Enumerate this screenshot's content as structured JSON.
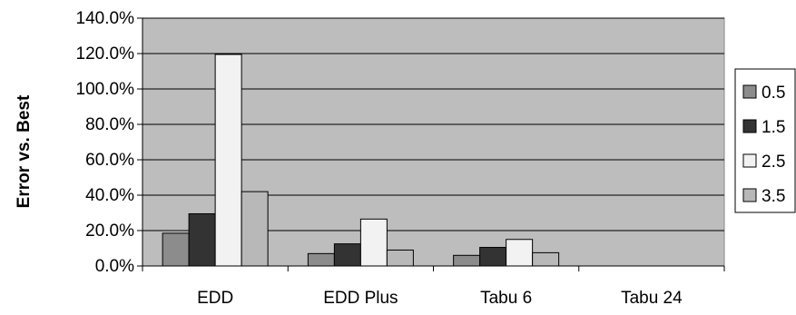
{
  "chart_data": {
    "type": "bar",
    "title": "",
    "xlabel": "",
    "ylabel": "Error vs. Best",
    "categories": [
      "EDD",
      "EDD Plus",
      "Tabu 6",
      "Tabu 24"
    ],
    "series": [
      {
        "name": "0.5",
        "values": [
          18.5,
          7.0,
          6.0,
          0.0
        ],
        "color": "#8c8c8c"
      },
      {
        "name": "1.5",
        "values": [
          29.5,
          12.5,
          10.5,
          0.0
        ],
        "color": "#333333"
      },
      {
        "name": "2.5",
        "values": [
          119.5,
          26.5,
          15.0,
          0.0
        ],
        "color": "#f2f2f2"
      },
      {
        "name": "3.5",
        "values": [
          42.0,
          9.0,
          7.5,
          0.0
        ],
        "color": "#b8b8b8"
      }
    ],
    "ylim": [
      0,
      140
    ],
    "yticks": [
      "0.0%",
      "20.0%",
      "40.0%",
      "60.0%",
      "80.0%",
      "100.0%",
      "120.0%",
      "140.0%"
    ],
    "grid": true,
    "legend": "right",
    "plot_background": "#bdbdbd"
  }
}
